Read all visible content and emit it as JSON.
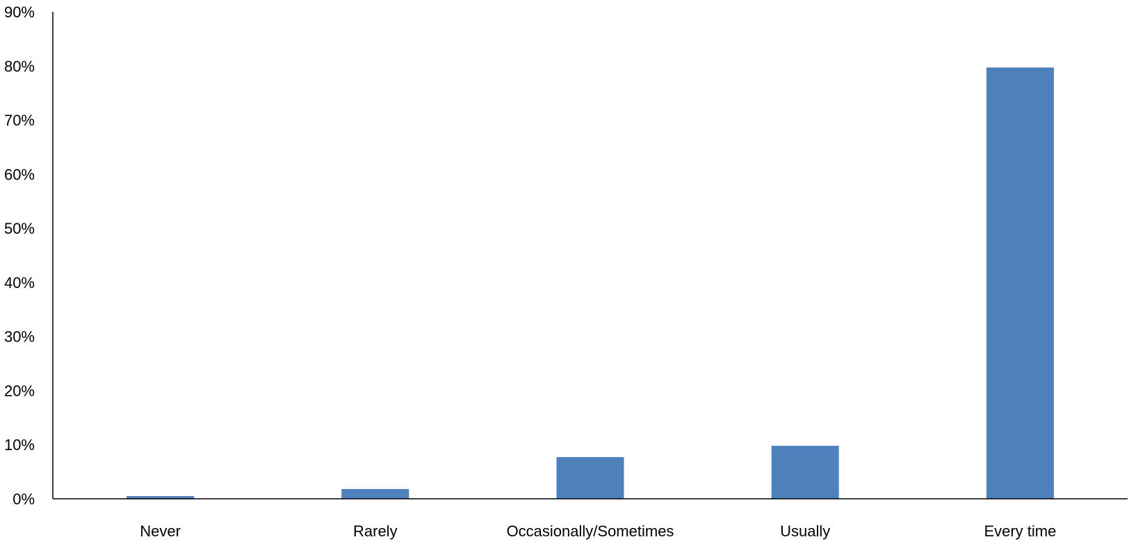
{
  "chart_data": {
    "type": "bar",
    "title": "",
    "xlabel": "",
    "ylabel": "",
    "categories": [
      "Never",
      "Rarely",
      "Occasionally/Sometimes",
      "Usually",
      "Every time"
    ],
    "values": [
      0.5,
      1.8,
      7.7,
      9.8,
      79.7
    ],
    "ylim": [
      0,
      90
    ],
    "yticks": [
      0,
      10,
      20,
      30,
      40,
      50,
      60,
      70,
      80,
      90
    ],
    "ytick_labels": [
      "0%",
      "10%",
      "20%",
      "30%",
      "40%",
      "50%",
      "60%",
      "70%",
      "80%",
      "90%"
    ],
    "grid": false,
    "legend": "none",
    "bar_color": "#4f81bd",
    "axis_color": "#000000"
  }
}
